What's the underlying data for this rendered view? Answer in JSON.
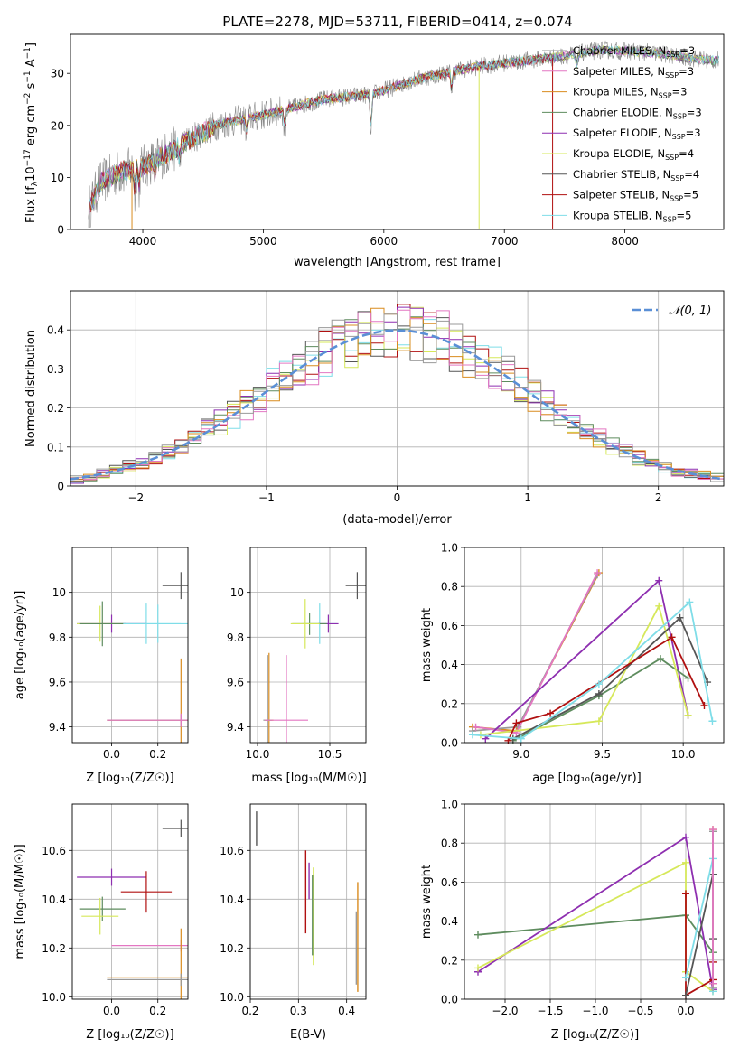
{
  "title": "PLATE=2278, MJD=53711, FIBERID=0414, z=0.074",
  "series": [
    {
      "name": "Chabrier MILES, N",
      "nssp": "=3",
      "color": "#999999"
    },
    {
      "name": "Salpeter MILES, N",
      "nssp": "=3",
      "color": "#e377c2"
    },
    {
      "name": "Kroupa MILES, N",
      "nssp": "=3",
      "color": "#d98c1f"
    },
    {
      "name": "Chabrier ELODIE, N",
      "nssp": "=3",
      "color": "#5e8c5e"
    },
    {
      "name": "Salpeter ELODIE, N",
      "nssp": "=3",
      "color": "#8e2fb0"
    },
    {
      "name": "Kroupa ELODIE, N",
      "nssp": "=4",
      "color": "#d6e85a"
    },
    {
      "name": "Chabrier STELIB, N",
      "nssp": "=4",
      "color": "#555555"
    },
    {
      "name": "Salpeter STELIB, N",
      "nssp": "=5",
      "color": "#b01010"
    },
    {
      "name": "Kroupa STELIB, N",
      "nssp": "=5",
      "color": "#7fdde8"
    }
  ],
  "chart_data": [
    {
      "id": "spectrum",
      "type": "line",
      "xlabel": "wavelength [Angstrom, rest frame]",
      "ylabel": "Flux [f",
      "xlim": [
        3400,
        8820
      ],
      "ylim": [
        0,
        37.5
      ],
      "xticks": [
        4000,
        5000,
        6000,
        7000,
        8000
      ],
      "yticks": [
        0,
        10,
        20,
        30
      ],
      "legend": "top-right",
      "spectrum_anchor_points": [
        [
          3550,
          4
        ],
        [
          3650,
          9
        ],
        [
          3800,
          11
        ],
        [
          4000,
          12
        ],
        [
          4300,
          16
        ],
        [
          4600,
          20
        ],
        [
          5000,
          22
        ],
        [
          5500,
          25
        ],
        [
          5900,
          26
        ],
        [
          6300,
          29
        ],
        [
          6700,
          31
        ],
        [
          7000,
          32
        ],
        [
          7400,
          33
        ],
        [
          7800,
          34.5
        ],
        [
          8200,
          34
        ],
        [
          8700,
          32.5
        ]
      ],
      "vertical_drop_lines": [
        3910,
        6790,
        7400
      ]
    },
    {
      "id": "residuals",
      "type": "histogram",
      "xlabel": "(data-model)/error",
      "ylabel": "Normed distribution",
      "xlim": [
        -2.5,
        2.5
      ],
      "ylim": [
        0,
        0.5
      ],
      "xticks": [
        -2,
        -1,
        0,
        1,
        2
      ],
      "yticks": [
        0.0,
        0.1,
        0.2,
        0.3,
        0.4
      ],
      "legend_label": "N(0,1)",
      "legend": "top-right",
      "bin_width": 0.1,
      "bins_from": -2.5
    },
    {
      "id": "age_vs_Z",
      "type": "errorbar",
      "xlabel": "Z [log10(Z/Z☉)]",
      "ylabel": "age [log10(age/yr)]",
      "xlim": [
        -0.17,
        0.33
      ],
      "ylim": [
        9.33,
        10.2
      ],
      "xticks": [
        0.0,
        0.2
      ],
      "xticklabels": [
        "0.0",
        "0.2"
      ],
      "yticks": [
        9.4,
        9.6,
        9.8,
        10.0
      ],
      "points": [
        {
          "s": 6,
          "x": 0.3,
          "y": 10.03,
          "xerr": 0.08,
          "yerr": 0.12
        },
        {
          "s": 8,
          "x": 0.15,
          "y": 9.86,
          "xerr": 0.15,
          "yerr": 0.18
        },
        {
          "s": 4,
          "x": 0.0,
          "y": 9.86,
          "xerr": 0.15,
          "yerr": 0.08
        },
        {
          "s": 5,
          "x": -0.05,
          "y": 9.86,
          "xerr": 0.1,
          "yerr": 0.16
        },
        {
          "s": 3,
          "x": -0.04,
          "y": 9.86,
          "xerr": 0.1,
          "yerr": 0.2
        },
        {
          "s": 8,
          "x": 0.2,
          "y": 9.86,
          "xerr": 0.15,
          "yerr": 0.17
        },
        {
          "s": 9,
          "x": 0.28,
          "y": 9.99,
          "xerr": 0.12,
          "yerr": 0.1
        },
        {
          "s": 2,
          "x": 0.3,
          "y": 9.43,
          "xerr": 0.32,
          "yerr": 0.55
        },
        {
          "s": 0,
          "x": 0.3,
          "y": 9.43,
          "xerr": 0.32,
          "yerr": 0.05
        },
        {
          "s": 1,
          "x": 0.3,
          "y": 9.43,
          "xerr": 0.32,
          "yerr": 0.06
        }
      ]
    },
    {
      "id": "age_vs_mass",
      "type": "errorbar",
      "xlabel": "mass [log10(M/M☉)]",
      "ylabel": "",
      "xlim": [
        9.95,
        10.75
      ],
      "ylim": [
        9.33,
        10.2
      ],
      "xticks": [
        10.0,
        10.5
      ],
      "xticklabels": [
        "10.0",
        "10.5"
      ],
      "yticks": [
        9.4,
        9.6,
        9.8,
        10.0
      ],
      "points": [
        {
          "s": 6,
          "x": 10.69,
          "y": 10.03,
          "xerr": 0.08,
          "yerr": 0.12
        },
        {
          "s": 8,
          "x": 10.43,
          "y": 9.86,
          "xerr": 0.12,
          "yerr": 0.18
        },
        {
          "s": 4,
          "x": 10.49,
          "y": 9.86,
          "xerr": 0.07,
          "yerr": 0.08
        },
        {
          "s": 3,
          "x": 10.36,
          "y": 9.86,
          "xerr": 0.12,
          "yerr": 0.1
        },
        {
          "s": 5,
          "x": 10.33,
          "y": 9.86,
          "xerr": 0.1,
          "yerr": 0.22
        },
        {
          "s": 9,
          "x": 10.46,
          "y": 9.99,
          "xerr": 0.09,
          "yerr": 0.1
        },
        {
          "s": 2,
          "x": 10.08,
          "y": 9.43,
          "xerr": 0.03,
          "yerr": 0.6
        },
        {
          "s": 0,
          "x": 10.07,
          "y": 9.43,
          "xerr": 0.03,
          "yerr": 0.58
        },
        {
          "s": 1,
          "x": 10.2,
          "y": 9.43,
          "xerr": 0.15,
          "yerr": 0.58
        }
      ]
    },
    {
      "id": "weight_vs_age",
      "type": "line",
      "xlabel": "age  [log10(age/yr)]",
      "ylabel": "mass weight",
      "xlim": [
        8.65,
        10.25
      ],
      "ylim": [
        0,
        1.0
      ],
      "xticks": [
        9.0,
        9.5,
        10.0
      ],
      "xticklabels": [
        "9.0",
        "9.5",
        "10.0"
      ],
      "yticks": [
        0.0,
        0.2,
        0.4,
        0.6,
        0.8,
        1.0
      ],
      "yticklabels": [
        "0.0",
        "0.2",
        "0.4",
        "0.6",
        "0.8",
        "1.0"
      ],
      "lines": [
        {
          "s": 2,
          "x": [
            8.7,
            8.97,
            9.48
          ],
          "y": [
            0.08,
            0.06,
            0.87
          ]
        },
        {
          "s": 0,
          "x": [
            8.7,
            8.98,
            9.47
          ],
          "y": [
            0.06,
            0.08,
            0.86
          ]
        },
        {
          "s": 1,
          "x": [
            8.72,
            8.97,
            9.47
          ],
          "y": [
            0.08,
            0.05,
            0.87
          ]
        },
        {
          "s": 4,
          "x": [
            8.78,
            9.85,
            10.03
          ],
          "y": [
            0.02,
            0.83,
            0.14
          ]
        },
        {
          "s": 3,
          "x": [
            8.95,
            9.48,
            9.86,
            10.03
          ],
          "y": [
            0.01,
            0.24,
            0.43,
            0.33
          ]
        },
        {
          "s": 5,
          "x": [
            8.75,
            9.48,
            9.85,
            10.03
          ],
          "y": [
            0.04,
            0.11,
            0.7,
            0.14
          ]
        },
        {
          "s": 6,
          "x": [
            8.95,
            9.48,
            9.98,
            10.15
          ],
          "y": [
            0.02,
            0.25,
            0.64,
            0.31
          ]
        },
        {
          "s": 7,
          "x": [
            8.92,
            8.97,
            9.18,
            9.93,
            10.13
          ],
          "y": [
            0.01,
            0.1,
            0.15,
            0.54,
            0.19
          ]
        },
        {
          "s": 8,
          "x": [
            8.7,
            9.0,
            9.48,
            10.04,
            10.18
          ],
          "y": [
            0.04,
            0.02,
            0.3,
            0.72,
            0.11
          ]
        }
      ]
    },
    {
      "id": "mass_vs_Z",
      "type": "errorbar",
      "xlabel": "Z [log10(Z/Z☉)]",
      "ylabel": "mass [log10(M/M☉)]",
      "xlim": [
        -0.17,
        0.33
      ],
      "ylim": [
        9.99,
        10.79
      ],
      "xticks": [
        0.0,
        0.2
      ],
      "xticklabels": [
        "0.0",
        "0.2"
      ],
      "yticks": [
        10.0,
        10.2,
        10.4,
        10.6
      ],
      "yticklabels": [
        "10.0",
        "10.2",
        "10.4",
        "10.6"
      ],
      "points": [
        {
          "s": 6,
          "x": 0.3,
          "y": 10.69,
          "xerr": 0.08,
          "yerr": 0.07
        },
        {
          "s": 4,
          "x": 0.0,
          "y": 10.49,
          "xerr": 0.15,
          "yerr": 0.07
        },
        {
          "s": 9,
          "x": 0.28,
          "y": 10.46,
          "xerr": 0.12,
          "yerr": 0.07
        },
        {
          "s": 7,
          "x": 0.15,
          "y": 10.43,
          "xerr": 0.11,
          "yerr": 0.17
        },
        {
          "s": 3,
          "x": -0.04,
          "y": 10.36,
          "xerr": 0.1,
          "yerr": 0.1
        },
        {
          "s": 5,
          "x": -0.05,
          "y": 10.33,
          "xerr": 0.08,
          "yerr": 0.15
        },
        {
          "s": 1,
          "x": 0.3,
          "y": 10.21,
          "xerr": 0.3,
          "yerr": 0.05
        },
        {
          "s": 2,
          "x": 0.3,
          "y": 10.08,
          "xerr": 0.32,
          "yerr": 0.4
        },
        {
          "s": 0,
          "x": 0.3,
          "y": 10.07,
          "xerr": 0.32,
          "yerr": 0.05
        }
      ]
    },
    {
      "id": "mass_vs_ebv",
      "type": "errorbar",
      "xlabel": "E(B-V)",
      "ylabel": "",
      "xlim": [
        0.2,
        0.44
      ],
      "ylim": [
        9.99,
        10.79
      ],
      "xticks": [
        0.2,
        0.3,
        0.4
      ],
      "xticklabels": [
        "0.2",
        "0.3",
        "0.4"
      ],
      "yticks": [
        10.0,
        10.2,
        10.4,
        10.6
      ],
      "yticklabels": [
        "10.0",
        "10.2",
        "10.4",
        "10.6"
      ],
      "vlines": [
        {
          "s": 6,
          "x": 0.213,
          "y0": 10.62,
          "y1": 10.76
        },
        {
          "s": 7,
          "x": 0.315,
          "y0": 10.26,
          "y1": 10.6
        },
        {
          "s": 4,
          "x": 0.322,
          "y0": 10.4,
          "y1": 10.55
        },
        {
          "s": 9,
          "x": 0.32,
          "y0": 10.15,
          "y1": 10.47
        },
        {
          "s": 5,
          "x": 0.331,
          "y0": 10.13,
          "y1": 10.53
        },
        {
          "s": 3,
          "x": 0.329,
          "y0": 10.17,
          "y1": 10.5
        },
        {
          "s": 2,
          "x": 0.423,
          "y0": 10.02,
          "y1": 10.47
        },
        {
          "s": 0,
          "x": 0.42,
          "y0": 10.05,
          "y1": 10.35
        }
      ]
    },
    {
      "id": "weight_vs_Z",
      "type": "line",
      "xlabel": "Z [log10(Z/Z☉)]",
      "ylabel": "mass weight",
      "xlim": [
        -2.45,
        0.42
      ],
      "ylim": [
        0,
        1.0
      ],
      "xticks": [
        -2.0,
        -1.5,
        -1.0,
        -0.5,
        0.0
      ],
      "xticklabels": [
        "−2.0",
        "−1.5",
        "−1.0",
        "−0.5",
        "0.0"
      ],
      "yticks": [
        0.0,
        0.2,
        0.4,
        0.6,
        0.8,
        1.0
      ],
      "yticklabels": [
        "0.0",
        "0.2",
        "0.4",
        "0.6",
        "0.8",
        "1.0"
      ],
      "lines": [
        {
          "s": 3,
          "x": [
            -2.3,
            0.0,
            0.3
          ],
          "y": [
            0.33,
            0.43,
            0.24
          ]
        },
        {
          "s": 4,
          "x": [
            -2.3,
            0.0,
            0.3
          ],
          "y": [
            0.14,
            0.83,
            0.05
          ]
        },
        {
          "s": 5,
          "x": [
            -2.3,
            0.0,
            0.0,
            0.3
          ],
          "y": [
            0.16,
            0.7,
            0.14,
            0.04
          ]
        },
        {
          "s": 7,
          "x": [
            0.0,
            0.0,
            0.3,
            0.3
          ],
          "y": [
            0.54,
            0.02,
            0.1,
            0.19
          ]
        },
        {
          "s": 6,
          "x": [
            0.0,
            0.3,
            0.3
          ],
          "y": [
            0.02,
            0.64,
            0.31
          ]
        },
        {
          "s": 8,
          "x": [
            0.0,
            0.3,
            0.3
          ],
          "y": [
            0.11,
            0.72,
            0.04
          ]
        },
        {
          "s": 2,
          "x": [
            0.3,
            0.3
          ],
          "y": [
            0.87,
            0.08
          ]
        },
        {
          "s": 0,
          "x": [
            0.3,
            0.3
          ],
          "y": [
            0.86,
            0.06
          ]
        },
        {
          "s": 1,
          "x": [
            0.3,
            0.3
          ],
          "y": [
            0.87,
            0.08
          ]
        }
      ]
    }
  ]
}
